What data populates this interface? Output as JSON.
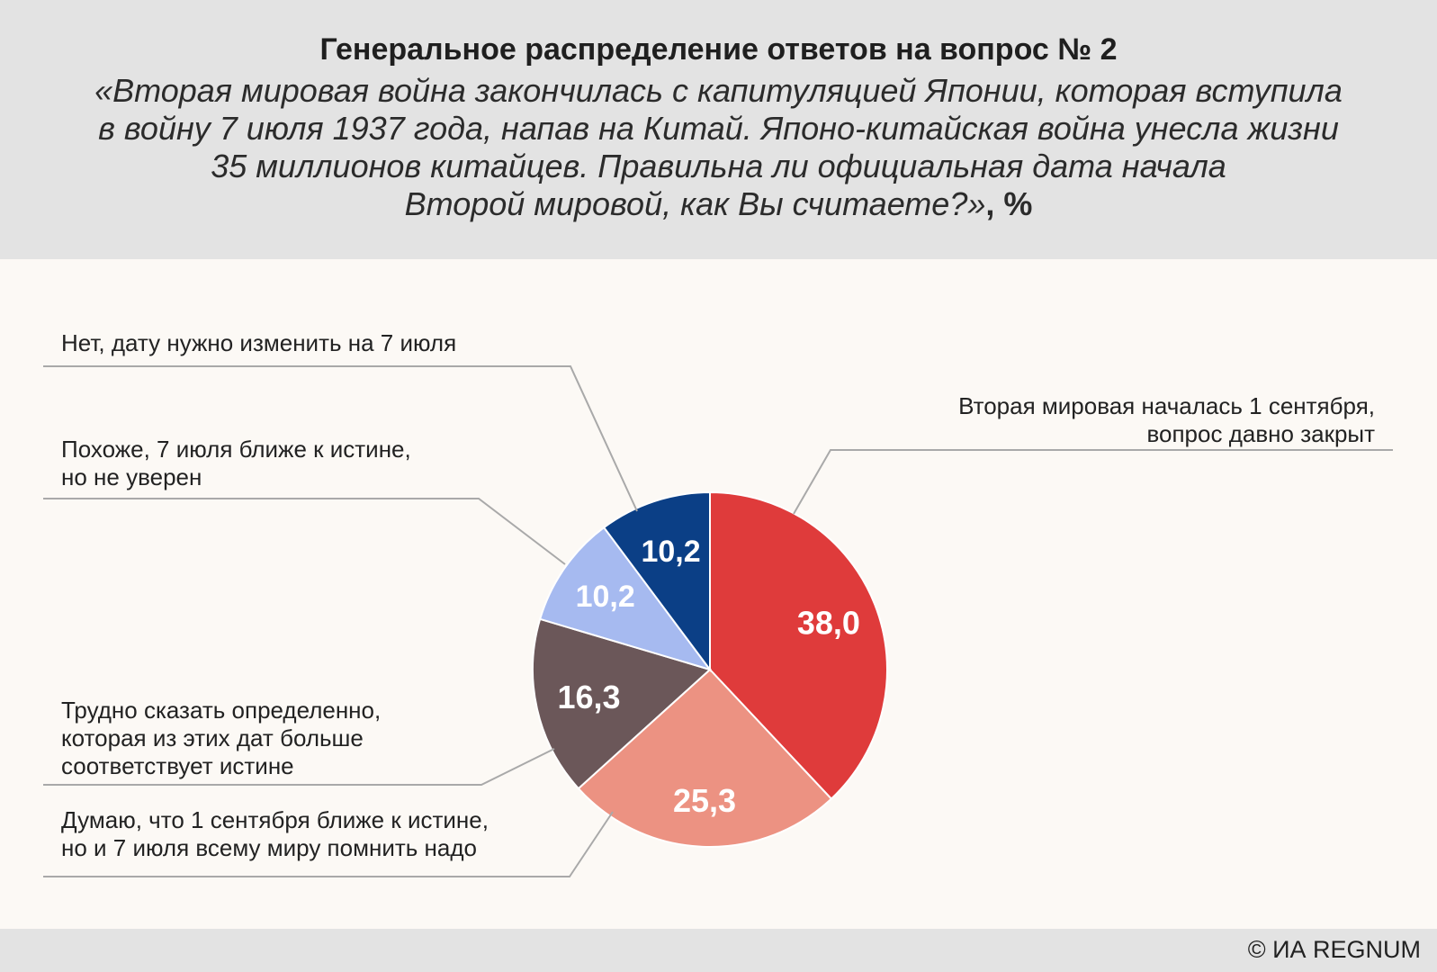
{
  "header": {
    "title": "Генеральное распределение ответов на вопрос № 2",
    "question_lines": [
      "«Вторая мировая война закончилась с капитуляцией Японии, которая вступила",
      "в войну 7 июля 1937 года, напав на Китай. Японо-китайская война унесла жизни",
      "35 миллионов китайцев. Правильна ли официальная дата начала",
      "Второй мировой, как Вы считаете?»"
    ],
    "unit_suffix": ", %"
  },
  "footer": {
    "copyright": "© ИА REGNUM"
  },
  "chart_data": {
    "type": "pie",
    "title": "Генеральное распределение ответов на вопрос № 2",
    "unit": "%",
    "start": "top (12 o'clock)",
    "direction": "clockwise",
    "slices": [
      {
        "label_lines": [
          "Вторая мировая началась 1 сентября,",
          "вопрос давно закрыт"
        ],
        "value": 38.0,
        "value_text": "38,0",
        "color": "#df3b3b"
      },
      {
        "label_lines": [
          "Думаю, что 1 сентября ближе к истине,",
          "но и 7 июля всему миру помнить надо"
        ],
        "value": 25.3,
        "value_text": "25,3",
        "color": "#ec9282"
      },
      {
        "label_lines": [
          "Трудно сказать определенно,",
          "которая из этих дат больше",
          "соответствует истине"
        ],
        "value": 16.3,
        "value_text": "16,3",
        "color": "#6b5759"
      },
      {
        "label_lines": [
          "Похоже, 7 июля ближе к истине,",
          "но не уверен"
        ],
        "value": 10.2,
        "value_text": "10,2",
        "color": "#a6baf0"
      },
      {
        "label_lines": [
          "Нет, дату нужно изменить на 7 июля"
        ],
        "value": 10.2,
        "value_text": "10,2",
        "color": "#0b3f86"
      }
    ]
  }
}
